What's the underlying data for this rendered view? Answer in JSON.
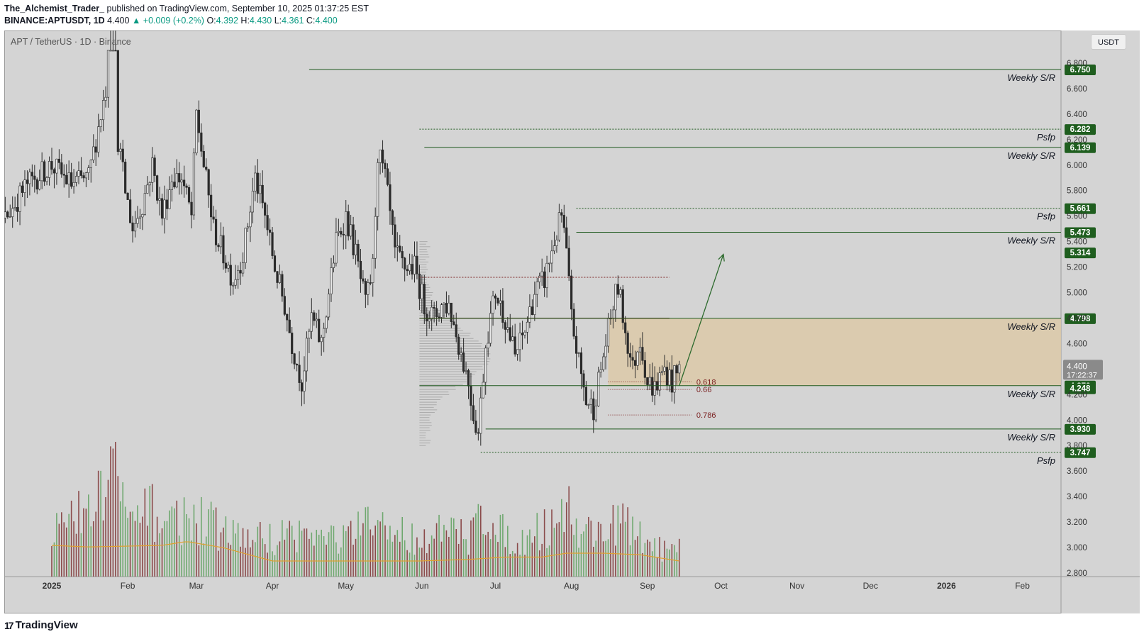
{
  "header": {
    "author": "The_Alchemist_Trader_",
    "published_text": "published on TradingView.com, September 10, 2025 01:37:25 EST",
    "symbol_line": "BINANCE:APTUSDT, 1D",
    "last": "4.400",
    "change": "+0.009 (+0.2%)",
    "o_label": "O:",
    "o": "4.392",
    "h_label": "H:",
    "h": "4.430",
    "l_label": "L:",
    "l": "4.361",
    "c_label": "C:",
    "c": "4.400"
  },
  "footer": {
    "logo_text": "TradingView",
    "logo_mark": "17"
  },
  "currency_button": "USDT",
  "colors": {
    "panel_bg": "#d4d4d4",
    "candle_body": "#2b2b2b",
    "support_line": "#1e5a1e",
    "label_green": "#1f5e1f",
    "zone_fill": "#dcc9a8",
    "profile": "#9a9a9a",
    "vol_up": "#6fa86f",
    "vol_down": "#8a4a4a",
    "vol_ma": "#e0a030",
    "arrow": "#2d6a2d"
  },
  "chart_data": {
    "type": "candlestick",
    "title": "APT / TetherUS · 1D · Binance",
    "ylim": [
      2.8,
      6.9
    ],
    "y_ticks": [
      "6.800",
      "6.600",
      "6.400",
      "6.200",
      "6.000",
      "5.800",
      "5.600",
      "5.400",
      "5.200",
      "5.000",
      "4.800",
      "4.600",
      "4.400",
      "4.200",
      "4.000",
      "3.800",
      "3.600",
      "3.400",
      "3.200",
      "3.000",
      "2.800"
    ],
    "x_labels": [
      "2025",
      "Feb",
      "Mar",
      "Apr",
      "May",
      "Jun",
      "Jul",
      "Aug",
      "Sep",
      "Oct",
      "Nov",
      "Dec",
      "2026",
      "Feb"
    ],
    "x_label_days": [
      0,
      31,
      59,
      90,
      120,
      151,
      181,
      212,
      243,
      273,
      304,
      334,
      365,
      396
    ],
    "x_start_date": "2024-12-11",
    "current_price": {
      "price": "4.400",
      "countdown": "17:22:37"
    },
    "ohlc_anchors_day_close": [
      [
        -30,
        5.35
      ],
      [
        -20,
        5.55
      ],
      [
        -10,
        5.85
      ],
      [
        0,
        6.0
      ],
      [
        8,
        5.85
      ],
      [
        15,
        5.9
      ],
      [
        22,
        6.6
      ],
      [
        25,
        8.5
      ],
      [
        27,
        6.2
      ],
      [
        30,
        5.8
      ],
      [
        33,
        5.5
      ],
      [
        37,
        5.7
      ],
      [
        41,
        6.0
      ],
      [
        45,
        5.6
      ],
      [
        49,
        5.9
      ],
      [
        53,
        5.9
      ],
      [
        57,
        5.6
      ],
      [
        59,
        6.4
      ],
      [
        62,
        6.0
      ],
      [
        66,
        5.5
      ],
      [
        70,
        5.3
      ],
      [
        74,
        5.1
      ],
      [
        78,
        5.3
      ],
      [
        83,
        5.9
      ],
      [
        87,
        5.6
      ],
      [
        91,
        5.2
      ],
      [
        95,
        4.9
      ],
      [
        98,
        4.6
      ],
      [
        102,
        4.3
      ],
      [
        106,
        4.8
      ],
      [
        110,
        4.6
      ],
      [
        113,
        5.0
      ],
      [
        116,
        5.4
      ],
      [
        120,
        5.6
      ],
      [
        124,
        5.3
      ],
      [
        128,
        4.9
      ],
      [
        131,
        5.2
      ],
      [
        133,
        6.1
      ],
      [
        136,
        5.9
      ],
      [
        140,
        5.3
      ],
      [
        144,
        5.2
      ],
      [
        148,
        5.2
      ],
      [
        152,
        4.9
      ],
      [
        156,
        4.8
      ],
      [
        159,
        4.9
      ],
      [
        162,
        4.9
      ],
      [
        166,
        4.6
      ],
      [
        170,
        4.3
      ],
      [
        172,
        4.05
      ],
      [
        174,
        3.9
      ],
      [
        177,
        4.6
      ],
      [
        181,
        5.0
      ],
      [
        185,
        4.8
      ],
      [
        189,
        4.5
      ],
      [
        193,
        4.7
      ],
      [
        197,
        5.0
      ],
      [
        201,
        5.1
      ],
      [
        205,
        5.4
      ],
      [
        208,
        5.6
      ],
      [
        210,
        5.3
      ],
      [
        212,
        4.8
      ],
      [
        215,
        4.45
      ],
      [
        218,
        4.15
      ],
      [
        221,
        4.1
      ],
      [
        225,
        4.5
      ],
      [
        229,
        4.9
      ],
      [
        231,
        5.05
      ],
      [
        234,
        4.7
      ],
      [
        237,
        4.4
      ],
      [
        240,
        4.65
      ],
      [
        243,
        4.3
      ],
      [
        246,
        4.25
      ],
      [
        250,
        4.4
      ],
      [
        253,
        4.3
      ],
      [
        256,
        4.4
      ]
    ],
    "volume_anchors_day_value": [
      [
        0,
        0.35
      ],
      [
        10,
        0.45
      ],
      [
        20,
        0.6
      ],
      [
        25,
        1.0
      ],
      [
        30,
        0.4
      ],
      [
        40,
        0.5
      ],
      [
        50,
        0.45
      ],
      [
        60,
        0.45
      ],
      [
        70,
        0.35
      ],
      [
        80,
        0.3
      ],
      [
        90,
        0.3
      ],
      [
        100,
        0.35
      ],
      [
        110,
        0.3
      ],
      [
        120,
        0.3
      ],
      [
        130,
        0.4
      ],
      [
        140,
        0.35
      ],
      [
        150,
        0.3
      ],
      [
        160,
        0.35
      ],
      [
        170,
        0.3
      ],
      [
        177,
        0.55
      ],
      [
        185,
        0.3
      ],
      [
        195,
        0.3
      ],
      [
        205,
        0.45
      ],
      [
        210,
        0.55
      ],
      [
        215,
        0.35
      ],
      [
        225,
        0.35
      ],
      [
        230,
        0.45
      ],
      [
        240,
        0.3
      ],
      [
        250,
        0.2
      ],
      [
        256,
        0.2
      ]
    ],
    "volume_ma_anchors": [
      [
        0,
        0.4
      ],
      [
        15,
        0.38
      ],
      [
        30,
        0.39
      ],
      [
        45,
        0.4
      ],
      [
        55,
        0.45
      ],
      [
        70,
        0.37
      ],
      [
        90,
        0.2
      ],
      [
        110,
        0.2
      ],
      [
        130,
        0.2
      ],
      [
        150,
        0.2
      ],
      [
        170,
        0.22
      ],
      [
        185,
        0.25
      ],
      [
        200,
        0.25
      ],
      [
        210,
        0.3
      ],
      [
        225,
        0.3
      ],
      [
        240,
        0.28
      ],
      [
        256,
        0.2
      ]
    ],
    "levels": [
      {
        "price": 6.75,
        "label": "6.750",
        "annotation": "Weekly S/R",
        "style": "solid",
        "from_day": 105
      },
      {
        "price": 6.282,
        "label": "6.282",
        "annotation": "Psfp",
        "style": "dotted",
        "from_day": 150
      },
      {
        "price": 6.139,
        "label": "6.139",
        "annotation": "Weekly S/R",
        "style": "solid",
        "from_day": 152
      },
      {
        "price": 5.661,
        "label": "5.661",
        "annotation": "Psfp",
        "style": "dotted",
        "from_day": 214
      },
      {
        "price": 5.473,
        "label": "5.473",
        "annotation": "Weekly S/R",
        "style": "solid",
        "from_day": 214
      },
      {
        "price": 5.314,
        "label": "5.314",
        "annotation": "",
        "style": "none",
        "from_day": 0
      },
      {
        "price": 4.798,
        "label": "4.798",
        "annotation": "Weekly S/R",
        "style": "solid",
        "from_day": 150
      },
      {
        "price": 4.27,
        "label": "4.270",
        "annotation": "Weekly S/R",
        "style": "solid",
        "from_day": 150
      },
      {
        "price": 4.248,
        "label": "4.248",
        "annotation": "",
        "style": "none",
        "from_day": 0
      },
      {
        "price": 3.93,
        "label": "3.930",
        "annotation": "Weekly S/R",
        "style": "solid",
        "from_day": 177
      },
      {
        "price": 3.747,
        "label": "3.747",
        "annotation": "Psfp",
        "style": "dotted",
        "from_day": 175
      }
    ],
    "dotted_red_levels": [
      {
        "price": 5.12,
        "from_day": 150,
        "to_day": 252
      },
      {
        "price": 4.8,
        "from_day": 150,
        "to_day": 252
      }
    ],
    "zone": {
      "top": 4.798,
      "bottom": 4.27,
      "from_day": 227
    },
    "fib_levels": [
      {
        "label": "0.618",
        "price": 4.3
      },
      {
        "label": "0.66",
        "price": 4.24
      },
      {
        "label": "0.786",
        "price": 4.04
      }
    ],
    "projection_arrow": {
      "from": [
        256,
        4.27
      ],
      "to": [
        274,
        5.3
      ]
    },
    "volume_profile_from_day": 150
  }
}
